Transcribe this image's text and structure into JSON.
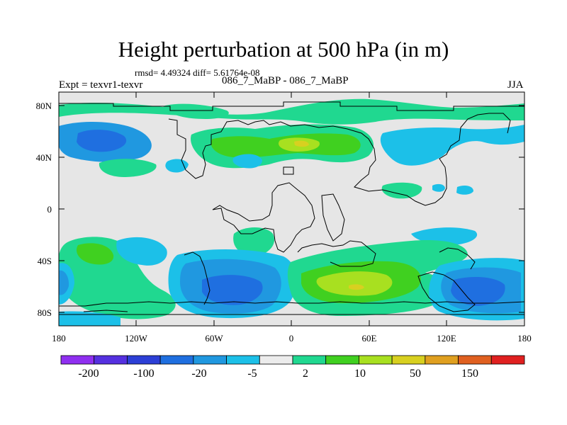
{
  "title": "Height perturbation at 500 hPa (in m)",
  "stats": "rmsd= 4.49324 diff= 5.61764e-08",
  "left_label": "Expt = texvr1-texvr",
  "center_label": "086_7_MaBP - 086_7_MaBP",
  "right_label": "JJA",
  "map": {
    "lat_ticks": [
      "80N",
      "40N",
      "0",
      "40S",
      "80S"
    ],
    "lon_ticks": [
      "180",
      "120W",
      "60W",
      "0",
      "60E",
      "120E",
      "180"
    ],
    "lon_range": [
      -180,
      180
    ],
    "lat_range": [
      -90,
      90
    ],
    "background_color": "#e6e6e6"
  },
  "colorbar": {
    "colors": [
      "#8f2ff0",
      "#5530e0",
      "#2c3fd6",
      "#1f6fe0",
      "#2098e0",
      "#1cc0e8",
      "#ececec",
      "#20d890",
      "#40d020",
      "#a8e020",
      "#d8d020",
      "#e0a020",
      "#e06020",
      "#e02020"
    ],
    "labels": [
      "-200",
      "-100",
      "-20",
      "-5",
      "2",
      "10",
      "50",
      "150"
    ]
  }
}
